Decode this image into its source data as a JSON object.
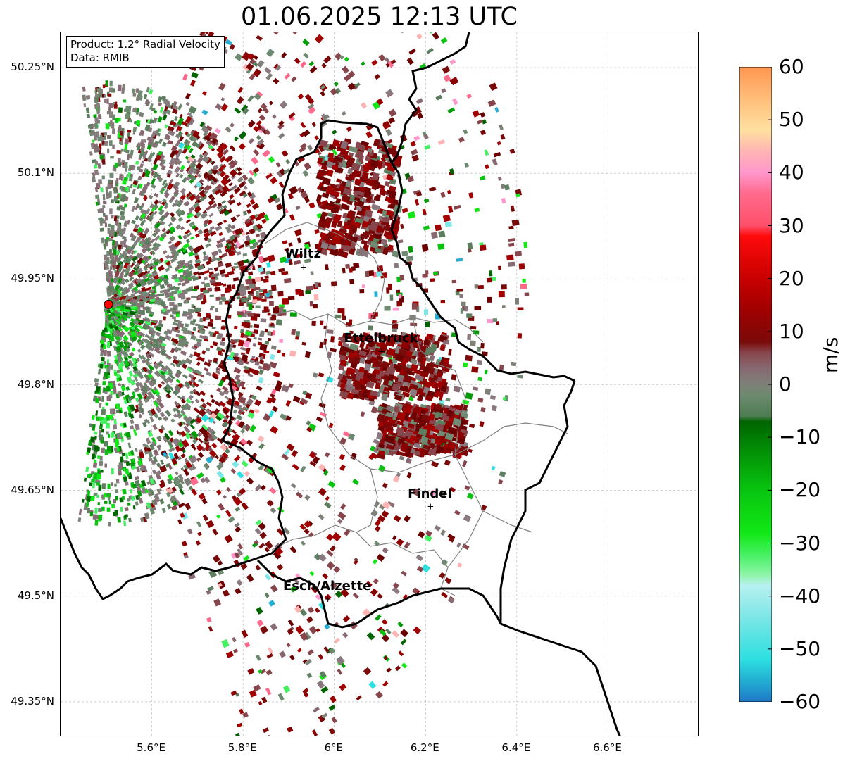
{
  "title": "01.06.2025 12:13 UTC",
  "info_box": {
    "product_line": "Product: 1.2° Radial Velocity",
    "data_line": "Data: RMIB"
  },
  "map": {
    "lon_range": [
      5.4,
      6.8
    ],
    "lat_range": [
      49.3,
      50.3
    ],
    "lat_ticks": [
      "50.25°N",
      "50.1°N",
      "49.95°N",
      "49.8°N",
      "49.65°N",
      "49.5°N",
      "49.35°N"
    ],
    "lat_tick_values": [
      50.25,
      50.1,
      49.95,
      49.8,
      49.65,
      49.5,
      49.35
    ],
    "lon_ticks": [
      "5.6°E",
      "5.8°E",
      "6°E",
      "6.2°E",
      "6.4°E",
      "6.6°E"
    ],
    "lon_tick_values": [
      5.6,
      5.8,
      6.0,
      6.2,
      6.4,
      6.6
    ],
    "radar_site": {
      "lon": 5.505,
      "lat": 49.914
    },
    "cities": [
      {
        "name": "Wiltz",
        "lon": 5.933,
        "lat": 49.967
      },
      {
        "name": "Ettelbruck",
        "lon": 6.104,
        "lat": 49.847
      },
      {
        "name": "Findel",
        "lon": 6.211,
        "lat": 49.627
      },
      {
        "name": "Esch/Alzette",
        "lon": 5.986,
        "lat": 49.496
      }
    ],
    "colors": {
      "border": "#000000",
      "admin": "#808080",
      "grid": "#b0b0b0",
      "radar_site": "#ff0000"
    }
  },
  "colorbar": {
    "unit": "m/s",
    "ticks": [
      "60",
      "50",
      "40",
      "30",
      "20",
      "10",
      "0",
      "−10",
      "−20",
      "−30",
      "−40",
      "−50",
      "−60"
    ],
    "tick_values": [
      60,
      50,
      40,
      30,
      20,
      10,
      0,
      -10,
      -20,
      -30,
      -40,
      -50,
      -60
    ],
    "range": [
      -60,
      60
    ],
    "stops": [
      {
        "v": -60,
        "color": "#1f78c8"
      },
      {
        "v": -56,
        "color": "#23aed2"
      },
      {
        "v": -52,
        "color": "#2cdfe0"
      },
      {
        "v": -44,
        "color": "#7de6e6"
      },
      {
        "v": -38,
        "color": "#b7f0f0"
      },
      {
        "v": -36,
        "color": "#8ef5a8"
      },
      {
        "v": -32,
        "color": "#44f060"
      },
      {
        "v": -28,
        "color": "#11e815"
      },
      {
        "v": -20,
        "color": "#08c410"
      },
      {
        "v": -14,
        "color": "#049a08"
      },
      {
        "v": -7,
        "color": "#006400"
      },
      {
        "v": -6,
        "color": "#4e7d52"
      },
      {
        "v": -2,
        "color": "#6e8a70"
      },
      {
        "v": 0,
        "color": "#7e8078"
      },
      {
        "v": 3,
        "color": "#876a72"
      },
      {
        "v": 6,
        "color": "#87464c"
      },
      {
        "v": 8,
        "color": "#7a0a0a"
      },
      {
        "v": 14,
        "color": "#a00000"
      },
      {
        "v": 20,
        "color": "#c80000"
      },
      {
        "v": 28,
        "color": "#ff0a0a"
      },
      {
        "v": 30,
        "color": "#ff4f6a"
      },
      {
        "v": 36,
        "color": "#ff6a8c"
      },
      {
        "v": 40,
        "color": "#ff96cc"
      },
      {
        "v": 44,
        "color": "#ffb4b4"
      },
      {
        "v": 48,
        "color": "#ffe0a0"
      },
      {
        "v": 54,
        "color": "#ffbe7a"
      },
      {
        "v": 60,
        "color": "#ff9650"
      }
    ]
  }
}
